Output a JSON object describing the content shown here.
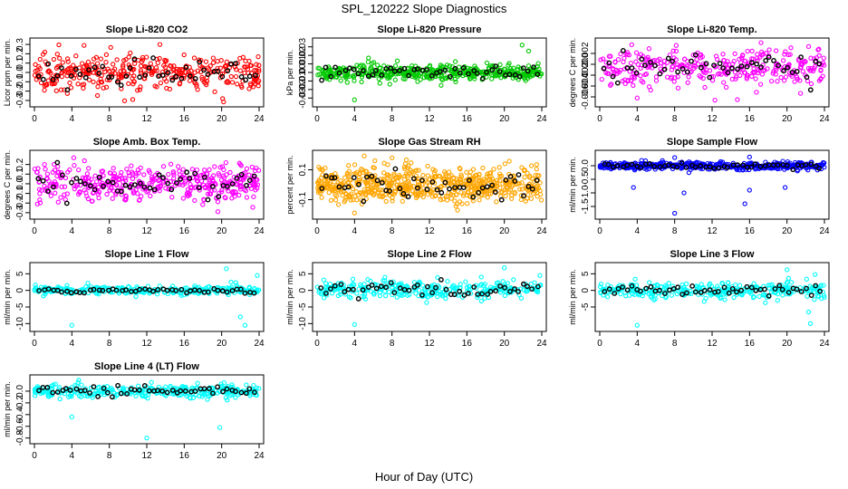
{
  "figure": {
    "title": "SPL_120222  Slope Diagnostics",
    "xlabel": "Hour of Day (UTC)"
  },
  "chart_data": [
    {
      "type": "scatter",
      "title": "Slope Li-820 CO2",
      "ylabel": "Licor ppm per min.",
      "xlim": [
        0,
        24
      ],
      "ylim": [
        -0.32,
        0.32
      ],
      "xticks": [
        0,
        4,
        8,
        12,
        16,
        20,
        24
      ],
      "yticks": [
        -0.3,
        -0.2,
        -0.1,
        0.0,
        0.1,
        0.2,
        0.3
      ],
      "ytick_labels": [
        "-0.3",
        "-0.2",
        "-0.1",
        "0.0",
        "0.1",
        "0.2",
        "0.3"
      ],
      "color": "#ff0000",
      "n_points": 360,
      "spread": 0.09,
      "center": 0.0,
      "outliers": [
        {
          "x": 5.3,
          "y": 0.29
        },
        {
          "x": 13.4,
          "y": 0.3
        },
        {
          "x": 10.5,
          "y": -0.29
        },
        {
          "x": 20.1,
          "y": -0.28
        }
      ]
    },
    {
      "type": "scatter",
      "title": "Slope Li-820 Pressure",
      "ylabel": "kPa per min.",
      "xlim": [
        0,
        24
      ],
      "ylim": [
        -0.035,
        0.035
      ],
      "xticks": [
        0,
        4,
        8,
        12,
        16,
        20,
        24
      ],
      "yticks": [
        -0.03,
        -0.02,
        -0.01,
        0.0,
        0.01,
        0.02,
        0.03
      ],
      "ytick_labels": [
        "-0.03",
        "-0.02",
        "-0.01",
        "0.00",
        "0.01",
        "0.02",
        "0.03"
      ],
      "color": "#00c800",
      "n_points": 420,
      "spread": 0.005,
      "center": 0.0,
      "outliers": [
        {
          "x": 4.0,
          "y": -0.032
        },
        {
          "x": 21.9,
          "y": 0.032
        },
        {
          "x": 22.6,
          "y": 0.025
        },
        {
          "x": 5.5,
          "y": 0.017
        }
      ]
    },
    {
      "type": "scatter",
      "title": "Slope Li-820 Temp.",
      "ylabel": "degrees C per min.",
      "xlim": [
        0,
        24
      ],
      "ylim": [
        -0.007,
        0.004
      ],
      "xticks": [
        0,
        4,
        8,
        12,
        16,
        20,
        24
      ],
      "yticks": [
        -0.006,
        -0.004,
        -0.002,
        0.0,
        0.002
      ],
      "ytick_labels": [
        "-0.006",
        "-0.004",
        "-0.002",
        "0.000",
        "0.002"
      ],
      "color": "#ff00ff",
      "n_points": 330,
      "spread": 0.0017,
      "center": -0.0005,
      "outliers": [
        {
          "x": 4.0,
          "y": -0.0062
        },
        {
          "x": 12.3,
          "y": -0.0066
        },
        {
          "x": 14.7,
          "y": -0.0065
        },
        {
          "x": 23.4,
          "y": 0.0028
        }
      ]
    },
    {
      "type": "scatter",
      "title": "Slope Amb. Box Temp.",
      "ylabel": "degrees C per min.",
      "xlim": [
        0,
        24
      ],
      "ylim": [
        -0.32,
        0.3
      ],
      "xticks": [
        0,
        4,
        8,
        12,
        16,
        20,
        24
      ],
      "yticks": [
        -0.3,
        -0.2,
        -0.1,
        0.0,
        0.1,
        0.2
      ],
      "ytick_labels": [
        "-0.3",
        "-0.2",
        "-0.1",
        "0.0",
        "0.1",
        "0.2"
      ],
      "color": "#ff00ff",
      "n_points": 420,
      "spread": 0.09,
      "center": 0.0,
      "outliers": [
        {
          "x": 4.2,
          "y": 0.27
        },
        {
          "x": 19.6,
          "y": -0.29
        },
        {
          "x": 22.0,
          "y": 0.2
        }
      ]
    },
    {
      "type": "scatter",
      "title": "Slope Gas Stream RH",
      "ylabel": "percent per min.",
      "xlim": [
        0,
        24
      ],
      "ylim": [
        -0.2,
        0.2
      ],
      "xticks": [
        0,
        4,
        8,
        12,
        16,
        20,
        24
      ],
      "yticks": [
        -0.1,
        0.1
      ],
      "ytick_labels": [
        "-0.1",
        "0.1"
      ],
      "color": "#ffa500",
      "n_points": 620,
      "spread": 0.06,
      "center": 0.0,
      "outliers": [
        {
          "x": 4.0,
          "y": -0.19
        },
        {
          "x": 8.0,
          "y": 0.18
        },
        {
          "x": 15.0,
          "y": -0.17
        }
      ]
    },
    {
      "type": "scatter",
      "title": "Slope Sample Flow",
      "ylabel": "ml/min per min.",
      "xlim": [
        0,
        24
      ],
      "ylim": [
        -1.8,
        0.4
      ],
      "xticks": [
        0,
        4,
        8,
        12,
        16,
        20,
        24
      ],
      "yticks": [
        -1.5,
        -1.0,
        -0.5,
        0.0
      ],
      "ytick_labels": [
        "-1.5",
        "-1.0",
        "-0.5",
        "0.0"
      ],
      "color": "#0000ff",
      "n_points": 420,
      "spread": 0.07,
      "center": 0.0,
      "outliers": [
        {
          "x": 8.0,
          "y": -1.75
        },
        {
          "x": 8.0,
          "y": 0.3
        },
        {
          "x": 15.5,
          "y": -1.4
        },
        {
          "x": 16.0,
          "y": -0.9
        },
        {
          "x": 3.6,
          "y": -0.8
        },
        {
          "x": 19.8,
          "y": -0.8
        },
        {
          "x": 16.0,
          "y": 0.32
        },
        {
          "x": 9.0,
          "y": -1.0
        }
      ]
    },
    {
      "type": "scatter",
      "title": "Slope Line 1 Flow",
      "ylabel": "ml/min per min.",
      "xlim": [
        0,
        24
      ],
      "ylim": [
        -11,
        7
      ],
      "xticks": [
        0,
        4,
        8,
        12,
        16,
        20,
        24
      ],
      "yticks": [
        -10,
        -5,
        0,
        5
      ],
      "ytick_labels": [
        "-10",
        "-5",
        "0",
        "5"
      ],
      "color": "#00ffff",
      "n_points": 300,
      "spread": 0.6,
      "center": 0.0,
      "outliers": [
        {
          "x": 4.0,
          "y": -10.5
        },
        {
          "x": 22.5,
          "y": -10.5
        },
        {
          "x": 22.0,
          "y": -8.0
        },
        {
          "x": 20.5,
          "y": 6.5
        },
        {
          "x": 23.8,
          "y": 4.5
        },
        {
          "x": 21.0,
          "y": 2.5
        }
      ]
    },
    {
      "type": "scatter",
      "title": "Slope Line 2 Flow",
      "ylabel": "ml/min per min.",
      "xlim": [
        0,
        24
      ],
      "ylim": [
        -11,
        7
      ],
      "xticks": [
        0,
        4,
        8,
        12,
        16,
        20,
        24
      ],
      "yticks": [
        -10,
        -5,
        0,
        5
      ],
      "ytick_labels": [
        "-10",
        "-5",
        "0",
        "5"
      ],
      "color": "#00ffff",
      "n_points": 300,
      "spread": 1.3,
      "center": 0.3,
      "outliers": [
        {
          "x": 4.0,
          "y": -10.3
        },
        {
          "x": 20.0,
          "y": 6.8
        },
        {
          "x": 23.8,
          "y": 4.5
        }
      ]
    },
    {
      "type": "scatter",
      "title": "Slope Line 3 Flow",
      "ylabel": "ml/min per min.",
      "xlim": [
        0,
        24
      ],
      "ylim": [
        -11,
        7
      ],
      "xticks": [
        0,
        4,
        8,
        12,
        16,
        20,
        24
      ],
      "yticks": [
        -5,
        0,
        5
      ],
      "ytick_labels": [
        "-5",
        "0",
        "5"
      ],
      "color": "#00ffff",
      "n_points": 300,
      "spread": 1.2,
      "center": 0.0,
      "outliers": [
        {
          "x": 4.0,
          "y": -10.5
        },
        {
          "x": 22.5,
          "y": -10.0
        },
        {
          "x": 22.3,
          "y": -6.5
        },
        {
          "x": 20.0,
          "y": 6.2
        },
        {
          "x": 23.0,
          "y": 4.8
        }
      ]
    },
    {
      "type": "scatter",
      "title": "Slope Line 4 (LT) Flow",
      "ylabel": "ml/min per min.",
      "xlim": [
        0,
        24
      ],
      "ylim": [
        -0.82,
        0.2
      ],
      "xticks": [
        0,
        4,
        8,
        12,
        16,
        20,
        24
      ],
      "yticks": [
        -0.8,
        -0.6,
        -0.4,
        -0.2,
        0.0
      ],
      "ytick_labels": [
        "-0.8",
        "-0.6",
        "-0.4",
        "-0.2",
        "0.0"
      ],
      "color": "#00ffff",
      "n_points": 320,
      "spread": 0.055,
      "center": 0.0,
      "outliers": [
        {
          "x": 4.0,
          "y": -0.44
        },
        {
          "x": 12.0,
          "y": -0.8
        },
        {
          "x": 19.8,
          "y": -0.62
        },
        {
          "x": 12.5,
          "y": 0.15
        }
      ]
    }
  ]
}
